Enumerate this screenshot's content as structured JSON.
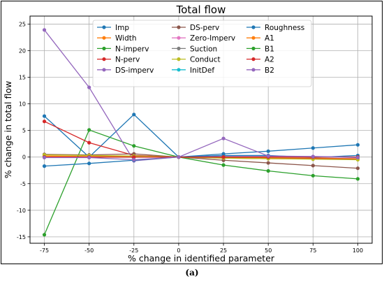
{
  "caption": "(a)",
  "chart_data": {
    "type": "line",
    "title": "Total flow",
    "xlabel": "% change in identified parameter",
    "ylabel": "% change in total flow",
    "x": [
      -75,
      -50,
      -25,
      0,
      25,
      50,
      75,
      100
    ],
    "xticks": [
      -75,
      -50,
      -25,
      0,
      25,
      50,
      75,
      100
    ],
    "yticks": [
      -15,
      -10,
      -5,
      0,
      5,
      10,
      15,
      20,
      25
    ],
    "xlim": [
      -83,
      108
    ],
    "ylim": [
      -16.2,
      26.5
    ],
    "grid": true,
    "legend_position": "top-center",
    "legend_columns": 3,
    "series": [
      {
        "name": "Imp",
        "color": "#1f77b4",
        "values": [
          7.7,
          0.0,
          8.0,
          0.0,
          0.3,
          0.3,
          -0.1,
          0.3
        ]
      },
      {
        "name": "Width",
        "color": "#ff7f0e",
        "values": [
          0.2,
          0.1,
          0.1,
          0.0,
          -0.1,
          -0.2,
          -0.2,
          -0.3
        ]
      },
      {
        "name": "N-imperv",
        "color": "#2ca02c",
        "values": [
          -14.6,
          5.1,
          2.1,
          0.0,
          -1.5,
          -2.6,
          -3.5,
          -4.1
        ]
      },
      {
        "name": "N-perv",
        "color": "#d62728",
        "values": [
          6.7,
          2.7,
          0.3,
          0.0,
          -0.2,
          -0.3,
          -0.3,
          -0.4
        ]
      },
      {
        "name": "DS-imperv",
        "color": "#9467bd",
        "values": [
          23.9,
          13.1,
          -0.7,
          0.0,
          0.1,
          0.1,
          0.1,
          0.0
        ]
      },
      {
        "name": "DS-perv",
        "color": "#8c564b",
        "values": [
          0.5,
          0.4,
          0.6,
          0.0,
          -0.6,
          -1.1,
          -1.6,
          -2.1
        ]
      },
      {
        "name": "Zero-Imperv",
        "color": "#e377c2",
        "values": [
          0.0,
          0.0,
          0.0,
          0.0,
          0.0,
          0.0,
          0.0,
          0.0
        ]
      },
      {
        "name": "Suction",
        "color": "#7f7f7f",
        "values": [
          0.0,
          0.0,
          0.0,
          0.0,
          0.0,
          0.0,
          0.0,
          0.0
        ]
      },
      {
        "name": "Conduct",
        "color": "#bcbd22",
        "values": [
          0.4,
          0.3,
          0.2,
          0.0,
          -0.2,
          -0.3,
          -0.4,
          -0.5
        ]
      },
      {
        "name": "InitDef",
        "color": "#17becf",
        "values": [
          0.0,
          0.0,
          0.0,
          0.0,
          0.0,
          0.0,
          0.0,
          0.0
        ]
      },
      {
        "name": "Roughness",
        "color": "#1f77b4",
        "values": [
          -1.7,
          -1.2,
          -0.6,
          0.0,
          0.6,
          1.1,
          1.7,
          2.3
        ]
      },
      {
        "name": "A1",
        "color": "#ff7f0e",
        "values": [
          0.0,
          0.0,
          0.0,
          0.0,
          0.0,
          0.0,
          0.0,
          0.0
        ]
      },
      {
        "name": "B1",
        "color": "#2ca02c",
        "values": [
          0.0,
          0.0,
          0.0,
          0.0,
          0.0,
          0.0,
          0.0,
          0.0
        ]
      },
      {
        "name": "A2",
        "color": "#d62728",
        "values": [
          0.0,
          0.0,
          0.0,
          0.0,
          0.0,
          0.0,
          0.0,
          0.0
        ]
      },
      {
        "name": "B2",
        "color": "#9467bd",
        "values": [
          -0.1,
          -0.1,
          -0.5,
          0.0,
          3.5,
          0.2,
          0.1,
          -0.1
        ]
      }
    ]
  }
}
